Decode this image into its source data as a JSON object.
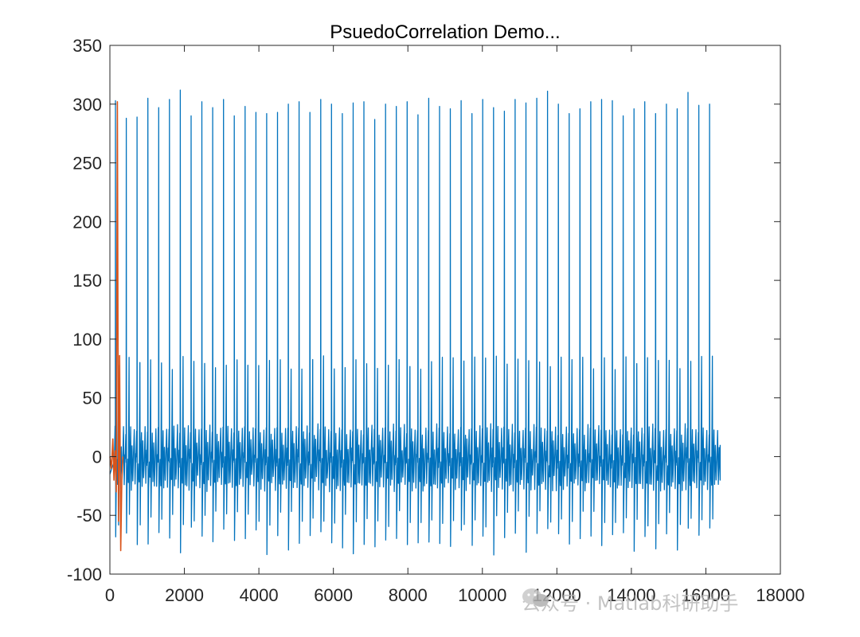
{
  "chart_data": {
    "type": "line",
    "title": "PsuedoCorrelation Demo...",
    "xlabel": "",
    "ylabel": "",
    "xlim": [
      0,
      18000
    ],
    "ylim": [
      -100,
      350
    ],
    "xticks": [
      0,
      2000,
      4000,
      6000,
      8000,
      10000,
      12000,
      14000,
      16000,
      18000
    ],
    "yticks": [
      -100,
      -50,
      0,
      50,
      100,
      150,
      200,
      250,
      300,
      350
    ],
    "xtick_labels": [
      "0",
      "2000",
      "4000",
      "6000",
      "8000",
      "10000",
      "12000",
      "14000",
      "16000",
      "18000"
    ],
    "ytick_labels": [
      "-100",
      "-50",
      "0",
      "50",
      "100",
      "150",
      "200",
      "250",
      "300",
      "350"
    ],
    "grid": false,
    "colors": {
      "series1": "#0072BD",
      "series2": "#D95319"
    },
    "series": [
      {
        "color": "#0072BD",
        "description": "periodic spiky signal",
        "x_range": [
          0,
          16384
        ],
        "period": 290,
        "peak_values": [
          303,
          288,
          289,
          305,
          297,
          304,
          312,
          290,
          302,
          297,
          304,
          290,
          298,
          293,
          292,
          293,
          300,
          302,
          293,
          304,
          300,
          292,
          301,
          302,
          287,
          300,
          298,
          302,
          291,
          305,
          298,
          296,
          303,
          292,
          304,
          297,
          294,
          304,
          301,
          305,
          311,
          300,
          292,
          296,
          302,
          304,
          303,
          290,
          296,
          302,
          292,
          300,
          296,
          310,
          299,
          300,
          291,
          304,
          312
        ],
        "secondary_peak": 80,
        "baseline": -15,
        "trough_range": [
          -84,
          -60
        ]
      },
      {
        "color": "#D95319",
        "description": "short signal segment",
        "x": [
          0,
          40,
          80,
          110,
          140,
          170,
          200,
          230,
          260,
          290,
          320,
          350
        ],
        "y": [
          0,
          -10,
          15,
          -20,
          5,
          -30,
          302,
          -55,
          86,
          -80,
          -20,
          0
        ]
      }
    ]
  },
  "watermark": "公众号 · Matlab科研助手"
}
